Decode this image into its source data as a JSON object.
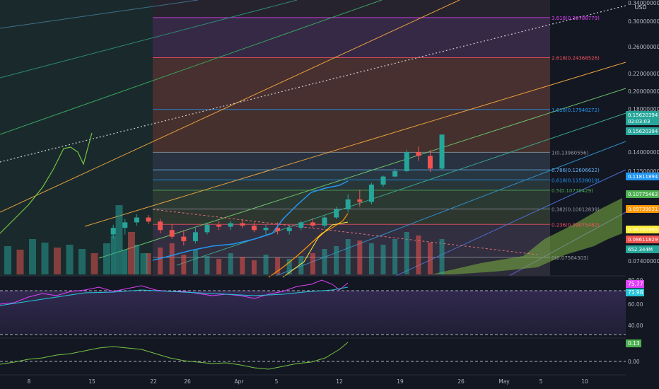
{
  "axis": {
    "currency": "USD",
    "price_ticks": [
      0.34,
      0.3,
      0.26,
      0.22,
      0.2,
      0.18,
      0.14,
      0.125,
      0.074
    ],
    "x_ticks": [
      "8",
      "15",
      "22",
      "26",
      "Apr",
      "5",
      "12",
      "19",
      "26",
      "May",
      "5",
      "10"
    ]
  },
  "price_badges": [
    {
      "value": "0.15620394",
      "sub": "02:03:03",
      "color": "#26a69a"
    },
    {
      "value": "0.15620394",
      "color": "#26a69a"
    },
    {
      "value": "0.11811894",
      "color": "#2196f3"
    },
    {
      "value": "0.10775463",
      "color": "#4caf50"
    },
    {
      "value": "0.09739031",
      "color": "#ff9800"
    },
    {
      "value": "0.08700965",
      "color": "#ffeb3b"
    },
    {
      "value": "0.08611829",
      "color": "#ef5350"
    },
    {
      "value": "652.344M",
      "color": "#26a69a"
    }
  ],
  "fib_levels": [
    {
      "ratio": "3.618",
      "value": "0.30788779",
      "color": "#e040fb"
    },
    {
      "ratio": "2.618",
      "value": "0.24368526",
      "color": "#f7525f"
    },
    {
      "ratio": "1.618",
      "value": "0.17948272",
      "color": "#2196f3"
    },
    {
      "ratio": "1",
      "value": "0.13980556",
      "color": "#9598a1"
    },
    {
      "ratio": "0.786",
      "value": "0.12606622",
      "color": "#64b5f6"
    },
    {
      "ratio": "0.618",
      "value": "0.11528019",
      "color": "#2196f3"
    },
    {
      "ratio": "0.5",
      "value": "0.10770429",
      "color": "#4caf50"
    },
    {
      "ratio": "0.382",
      "value": "0.10012839",
      "color": "#9598a1"
    },
    {
      "ratio": "0.236",
      "value": "0.09075482",
      "color": "#f7525f"
    },
    {
      "ratio": "0",
      "value": "0.07564303",
      "color": "#9598a1"
    }
  ],
  "rsi": {
    "ticks": [
      80.0,
      60.0,
      40.0
    ],
    "badges": [
      {
        "value": "75.77",
        "color": "#e040fb"
      },
      {
        "value": "71.98",
        "color": "#26c6da"
      }
    ]
  },
  "osc": {
    "ticks": [
      "0.00"
    ],
    "badges": [
      {
        "value": "0.13",
        "color": "#4caf50"
      }
    ]
  },
  "chart_data": {
    "type": "candlestick",
    "candles": [
      {
        "o": 0.086,
        "h": 0.0905,
        "l": 0.084,
        "c": 0.089
      },
      {
        "o": 0.089,
        "h": 0.094,
        "l": 0.086,
        "c": 0.092
      },
      {
        "o": 0.092,
        "h": 0.097,
        "l": 0.09,
        "c": 0.095
      },
      {
        "o": 0.095,
        "h": 0.0965,
        "l": 0.091,
        "c": 0.0925
      },
      {
        "o": 0.0925,
        "h": 0.094,
        "l": 0.0865,
        "c": 0.088
      },
      {
        "o": 0.088,
        "h": 0.091,
        "l": 0.084,
        "c": 0.085
      },
      {
        "o": 0.085,
        "h": 0.088,
        "l": 0.081,
        "c": 0.083
      },
      {
        "o": 0.083,
        "h": 0.089,
        "l": 0.082,
        "c": 0.087
      },
      {
        "o": 0.087,
        "h": 0.092,
        "l": 0.086,
        "c": 0.0905
      },
      {
        "o": 0.0905,
        "h": 0.093,
        "l": 0.088,
        "c": 0.0895
      },
      {
        "o": 0.0895,
        "h": 0.093,
        "l": 0.088,
        "c": 0.0915
      },
      {
        "o": 0.0915,
        "h": 0.094,
        "l": 0.089,
        "c": 0.09
      },
      {
        "o": 0.09,
        "h": 0.092,
        "l": 0.087,
        "c": 0.088
      },
      {
        "o": 0.088,
        "h": 0.0905,
        "l": 0.086,
        "c": 0.089
      },
      {
        "o": 0.089,
        "h": 0.092,
        "l": 0.086,
        "c": 0.0875
      },
      {
        "o": 0.0875,
        "h": 0.09,
        "l": 0.086,
        "c": 0.089
      },
      {
        "o": 0.089,
        "h": 0.093,
        "l": 0.088,
        "c": 0.092
      },
      {
        "o": 0.092,
        "h": 0.0945,
        "l": 0.089,
        "c": 0.09
      },
      {
        "o": 0.09,
        "h": 0.096,
        "l": 0.089,
        "c": 0.095
      },
      {
        "o": 0.095,
        "h": 0.101,
        "l": 0.094,
        "c": 0.1
      },
      {
        "o": 0.1,
        "h": 0.106,
        "l": 0.098,
        "c": 0.104
      },
      {
        "o": 0.104,
        "h": 0.108,
        "l": 0.101,
        "c": 0.103
      },
      {
        "o": 0.103,
        "h": 0.112,
        "l": 0.102,
        "c": 0.11
      },
      {
        "o": 0.11,
        "h": 0.12,
        "l": 0.109,
        "c": 0.119
      },
      {
        "o": 0.119,
        "h": 0.127,
        "l": 0.118,
        "c": 0.125
      },
      {
        "o": 0.125,
        "h": 0.142,
        "l": 0.124,
        "c": 0.14
      },
      {
        "o": 0.14,
        "h": 0.145,
        "l": 0.133,
        "c": 0.137
      },
      {
        "o": 0.137,
        "h": 0.142,
        "l": 0.124,
        "c": 0.127
      },
      {
        "o": 0.127,
        "h": 0.1562,
        "l": 0.126,
        "c": 0.1562
      }
    ],
    "volume": [
      0.55,
      0.35,
      0.42,
      0.3,
      0.38,
      0.44,
      0.28,
      0.35,
      0.26,
      0.22,
      0.3,
      0.25,
      0.2,
      0.28,
      0.24,
      0.22,
      0.26,
      0.3,
      0.36,
      0.4,
      0.5,
      0.48,
      0.44,
      0.42,
      0.5,
      0.6,
      0.55,
      0.45,
      0.5
    ]
  }
}
